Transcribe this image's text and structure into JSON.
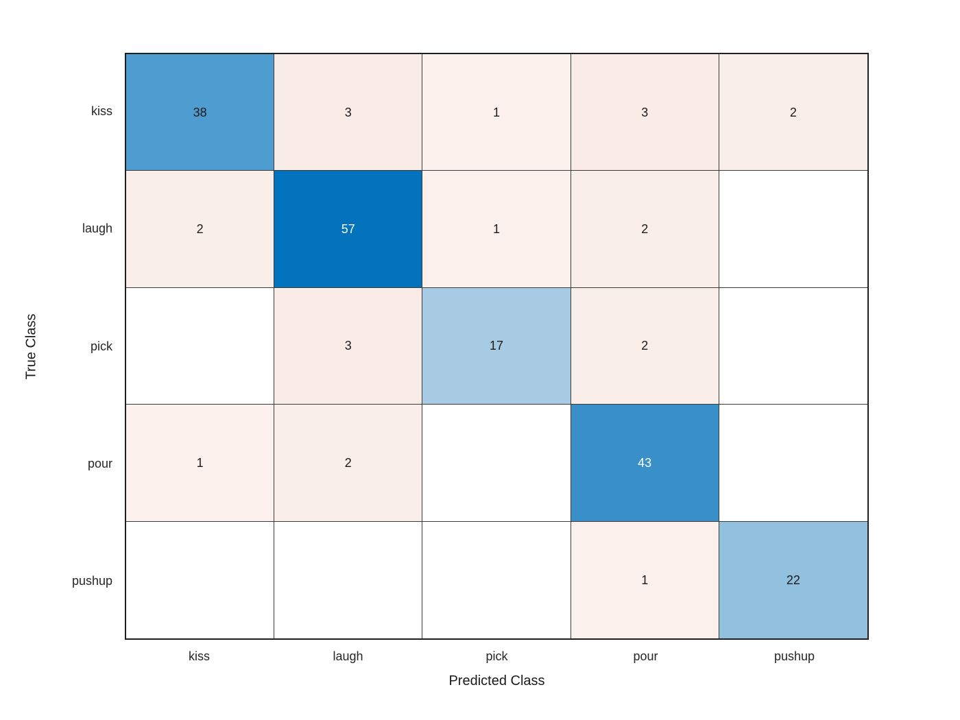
{
  "chart_data": {
    "type": "heatmap",
    "subtype": "confusion-matrix",
    "title": "",
    "xlabel": "Predicted Class",
    "ylabel": "True Class",
    "classes": [
      "kiss",
      "laugh",
      "pick",
      "pour",
      "pushup"
    ],
    "matrix": [
      [
        38,
        3,
        1,
        3,
        2
      ],
      [
        2,
        57,
        1,
        2,
        0
      ],
      [
        0,
        3,
        17,
        2,
        0
      ],
      [
        1,
        2,
        0,
        43,
        0
      ],
      [
        0,
        0,
        0,
        1,
        22
      ]
    ],
    "zero_cells_blank": true,
    "legend_position": "none",
    "grid": true
  },
  "styles": {
    "background": "#ffffff",
    "grid_line_color": "#3a3a3a",
    "border_color": "#1f1f1f",
    "tick_label_color": "#262626",
    "axis_title_color": "#1a1a1a",
    "cell_bg": [
      [
        "#4f9dd0",
        "#f9ece6",
        "#fbf0eb",
        "#f9ece6",
        "#faeee9"
      ],
      [
        "#faeee9",
        "#0272bc",
        "#fbf0eb",
        "#faeee9",
        "#ffffff"
      ],
      [
        "#ffffff",
        "#f9ece6",
        "#a6cbe3",
        "#faeee9",
        "#ffffff"
      ],
      [
        "#fbf0eb",
        "#faeee9",
        "#ffffff",
        "#3990c8",
        "#ffffff"
      ],
      [
        "#ffffff",
        "#ffffff",
        "#ffffff",
        "#fbf0eb",
        "#92c1e0"
      ]
    ],
    "cell_fg": [
      [
        "#1a1a1a",
        "#1a1a1a",
        "#1a1a1a",
        "#1a1a1a",
        "#1a1a1a"
      ],
      [
        "#1a1a1a",
        "#ffffff",
        "#1a1a1a",
        "#1a1a1a",
        "#1a1a1a"
      ],
      [
        "#1a1a1a",
        "#1a1a1a",
        "#1a1a1a",
        "#1a1a1a",
        "#1a1a1a"
      ],
      [
        "#1a1a1a",
        "#1a1a1a",
        "#1a1a1a",
        "#ffffff",
        "#1a1a1a"
      ],
      [
        "#1a1a1a",
        "#1a1a1a",
        "#1a1a1a",
        "#1a1a1a",
        "#1a1a1a"
      ]
    ]
  }
}
